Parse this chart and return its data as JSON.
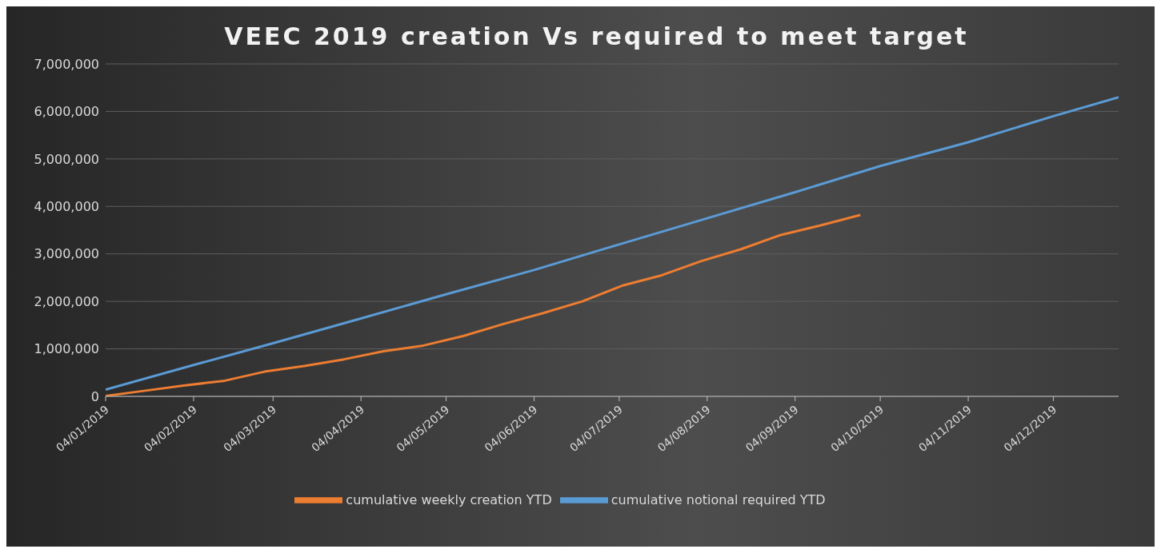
{
  "chart_data": {
    "type": "line",
    "title": "VEEC 2019 creation Vs required to meet target",
    "series": [
      {
        "name": "cumulative weekly creation YTD",
        "color": "#ed7d31",
        "x": [
          "2019-01-04",
          "2019-01-18",
          "2019-02-01",
          "2019-02-15",
          "2019-03-01",
          "2019-03-15",
          "2019-03-29",
          "2019-04-12",
          "2019-04-26",
          "2019-05-10",
          "2019-05-24",
          "2019-06-07",
          "2019-06-21",
          "2019-07-05",
          "2019-07-19",
          "2019-08-02",
          "2019-08-16",
          "2019-08-30",
          "2019-09-13",
          "2019-09-27"
        ],
        "values": [
          10000,
          120000,
          230000,
          330000,
          520000,
          640000,
          780000,
          950000,
          1070000,
          1270000,
          1520000,
          1750000,
          2000000,
          2330000,
          2550000,
          2850000,
          3100000,
          3400000,
          3600000,
          3820000
        ]
      },
      {
        "name": "cumulative notional required YTD",
        "color": "#5b9bd5",
        "x": [
          "2019-01-04",
          "2019-02-04",
          "2019-03-04",
          "2019-04-04",
          "2019-05-04",
          "2019-06-04",
          "2019-07-04",
          "2019-08-04",
          "2019-09-04",
          "2019-10-04",
          "2019-11-04",
          "2019-12-04",
          "2019-12-27"
        ],
        "values": [
          140000,
          660000,
          1120000,
          1640000,
          2150000,
          2660000,
          3200000,
          3750000,
          4300000,
          4850000,
          5350000,
          5900000,
          6300000
        ]
      }
    ],
    "xlim": [
      "2019-01-04",
      "2019-12-27"
    ],
    "xticks": [
      {
        "value": "2019-01-04",
        "label": "04/01/2019"
      },
      {
        "value": "2019-02-04",
        "label": "04/02/2019"
      },
      {
        "value": "2019-03-04",
        "label": "04/03/2019"
      },
      {
        "value": "2019-04-04",
        "label": "04/04/2019"
      },
      {
        "value": "2019-05-04",
        "label": "04/05/2019"
      },
      {
        "value": "2019-06-04",
        "label": "04/06/2019"
      },
      {
        "value": "2019-07-04",
        "label": "04/07/2019"
      },
      {
        "value": "2019-08-04",
        "label": "04/08/2019"
      },
      {
        "value": "2019-09-04",
        "label": "04/09/2019"
      },
      {
        "value": "2019-10-04",
        "label": "04/10/2019"
      },
      {
        "value": "2019-11-04",
        "label": "04/11/2019"
      },
      {
        "value": "2019-12-04",
        "label": "04/12/2019"
      }
    ],
    "ylim": [
      0,
      7000000
    ],
    "yticks": [
      0,
      {
        "value": 1000000,
        "label": "1,000,000"
      },
      {
        "value": 2000000,
        "label": "2,000,000"
      },
      {
        "value": 3000000,
        "label": "3,000,000"
      },
      {
        "value": 4000000,
        "label": "4,000,000"
      },
      {
        "value": 5000000,
        "label": "5,000,000"
      },
      {
        "value": 6000000,
        "label": "6,000,000"
      },
      {
        "value": 7000000,
        "label": "7,000,000"
      }
    ],
    "grid": "y",
    "legend": "bottom",
    "marker": "none",
    "line_style": "solid"
  }
}
